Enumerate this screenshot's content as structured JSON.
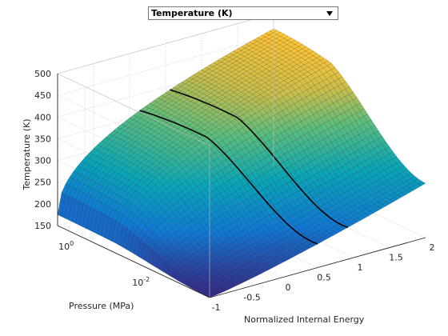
{
  "dropdown": {
    "selected": "Temperature (K)"
  },
  "chart_data": {
    "type": "surface",
    "x_label": "Normalized Internal Energy",
    "y_label": "Pressure (MPa)",
    "z_label": "Temperature (K)",
    "x_ticks": [
      "-1",
      "-0.5",
      "0",
      "0.5",
      "1",
      "1.5",
      "2"
    ],
    "y_ticks": [
      "10^-2",
      "10^0"
    ],
    "z_ticks": [
      "150",
      "200",
      "250",
      "300",
      "350",
      "400",
      "450",
      "500"
    ],
    "x_range": [
      -1,
      2
    ],
    "y_scale": "log",
    "z_range": [
      150,
      500
    ],
    "grid": true,
    "colormap": "parula",
    "corner_values": {
      "low_energy_low_pressure": 150,
      "low_energy_high_pressure": 175,
      "high_energy_low_pressure": 275,
      "high_energy_high_pressure": 465
    },
    "phase_boundary_lines": 2
  },
  "colors": {
    "axis": "#262626",
    "grid": "#d9d9d9",
    "mesh_edge": "#000000"
  }
}
